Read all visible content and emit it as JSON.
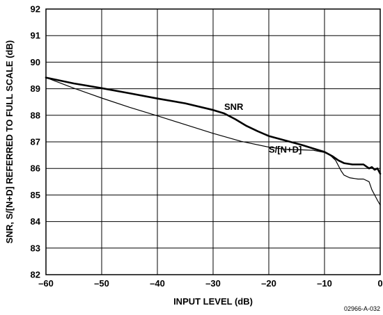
{
  "chart_data": {
    "type": "line",
    "title": "",
    "xlabel": "INPUT LEVEL (dB)",
    "ylabel": "SNR, S/[N+D] REFERRED TO FULL SCALE (dB)",
    "xlim": [
      -60,
      0
    ],
    "ylim": [
      82,
      92
    ],
    "x_ticks": [
      -60,
      -50,
      -40,
      -30,
      -20,
      -10,
      0
    ],
    "x_tick_labels": [
      "–60",
      "–50",
      "–40",
      "–30",
      "–20",
      "–10",
      "0"
    ],
    "y_ticks": [
      82,
      83,
      84,
      85,
      86,
      87,
      88,
      89,
      90,
      91,
      92
    ],
    "y_tick_labels": [
      "82",
      "83",
      "84",
      "85",
      "86",
      "87",
      "88",
      "89",
      "90",
      "91",
      "92"
    ],
    "grid": true,
    "series": [
      {
        "name": "SNR",
        "label": {
          "text": "SNR",
          "x": -28,
          "y": 88.2
        },
        "points": [
          [
            -60,
            89.42
          ],
          [
            -55,
            89.2
          ],
          [
            -50,
            89.02
          ],
          [
            -45,
            88.83
          ],
          [
            -40,
            88.63
          ],
          [
            -35,
            88.45
          ],
          [
            -30,
            88.2
          ],
          [
            -28,
            88.07
          ],
          [
            -26,
            87.85
          ],
          [
            -24,
            87.6
          ],
          [
            -22,
            87.4
          ],
          [
            -20,
            87.22
          ],
          [
            -17,
            87.05
          ],
          [
            -14,
            86.88
          ],
          [
            -12,
            86.75
          ],
          [
            -10,
            86.62
          ],
          [
            -8.5,
            86.45
          ],
          [
            -7.5,
            86.3
          ],
          [
            -6.5,
            86.2
          ],
          [
            -5,
            86.15
          ],
          [
            -4,
            86.15
          ],
          [
            -3,
            86.15
          ],
          [
            -2,
            86.0
          ],
          [
            -1.5,
            86.05
          ],
          [
            -1,
            85.95
          ],
          [
            -0.5,
            86.0
          ],
          [
            0,
            85.8
          ]
        ]
      },
      {
        "name": "S/[N+D]",
        "label": {
          "text": "S/[N+D]",
          "x": -20,
          "y": 86.6
        },
        "points": [
          [
            -60,
            89.42
          ],
          [
            -55,
            89.02
          ],
          [
            -50,
            88.65
          ],
          [
            -45,
            88.3
          ],
          [
            -40,
            87.98
          ],
          [
            -35,
            87.65
          ],
          [
            -30,
            87.32
          ],
          [
            -25,
            87.02
          ],
          [
            -20,
            86.8
          ],
          [
            -17,
            86.72
          ],
          [
            -14,
            86.7
          ],
          [
            -12,
            86.68
          ],
          [
            -10,
            86.6
          ],
          [
            -9,
            86.5
          ],
          [
            -8,
            86.3
          ],
          [
            -7.5,
            86.1
          ],
          [
            -7,
            85.9
          ],
          [
            -6.5,
            85.75
          ],
          [
            -5.5,
            85.65
          ],
          [
            -4,
            85.6
          ],
          [
            -3,
            85.6
          ],
          [
            -2,
            85.5
          ],
          [
            -1.5,
            85.2
          ],
          [
            -1,
            85.0
          ],
          [
            -0.5,
            84.8
          ],
          [
            0,
            84.62
          ]
        ]
      }
    ]
  },
  "figure_id": "02966-A-032"
}
